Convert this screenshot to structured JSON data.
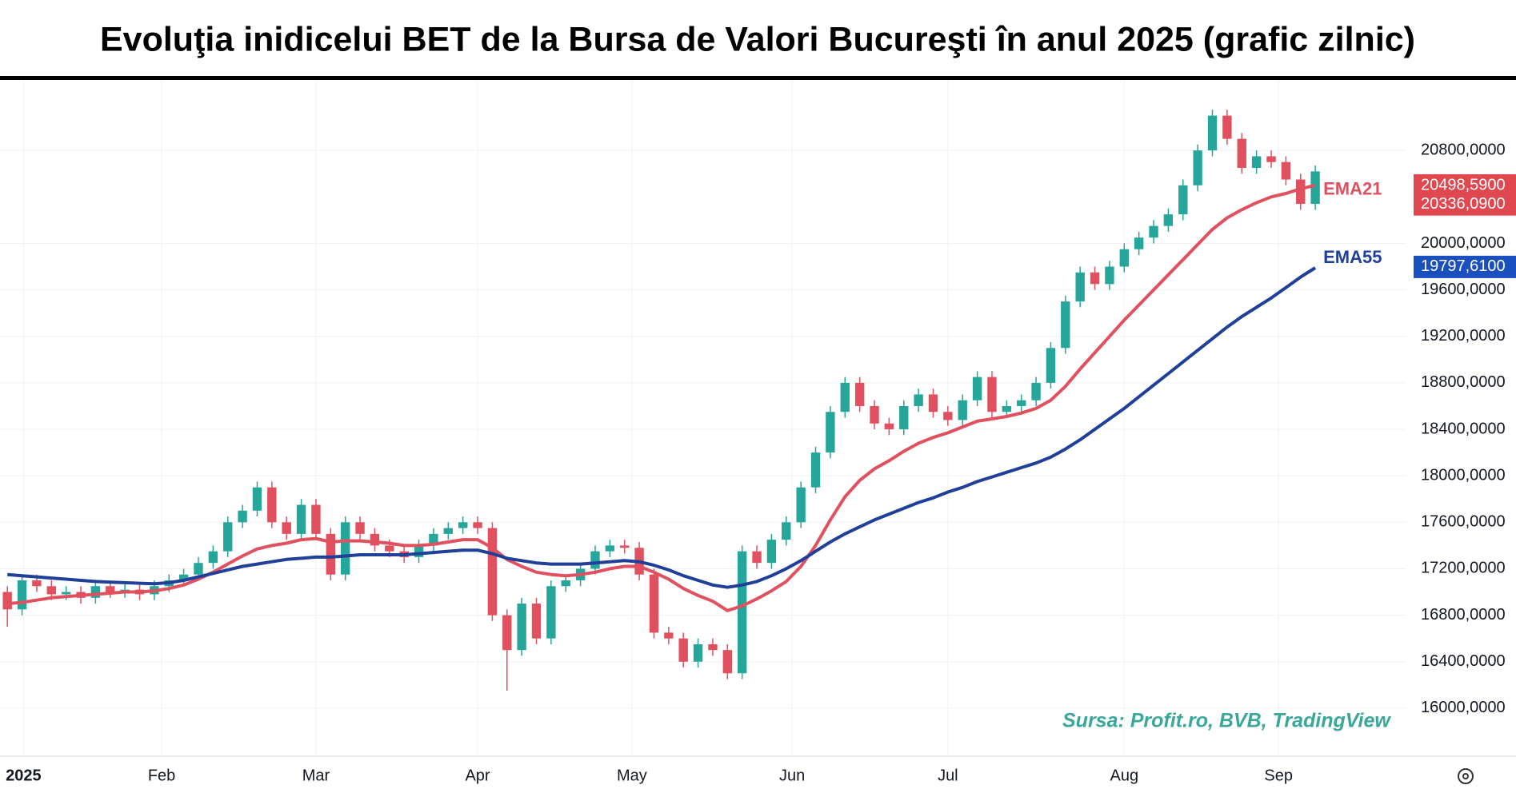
{
  "chart_data": {
    "type": "candlestick",
    "title": "Evoluţia inidicelui BET de la Bursa de Valori Bucureşti în anul 2025 (grafic zilnic)",
    "source": "Sursa: Profit.ro, BVB, TradingView",
    "up_color": "#26a69a",
    "down_color": "#e0505e",
    "grid": true,
    "xlim": [
      -0.5,
      95.2
    ],
    "ylim": [
      15600,
      21400
    ],
    "yticks": [
      {
        "value": 16000,
        "label": "16000,0000"
      },
      {
        "value": 16400,
        "label": "16400,0000"
      },
      {
        "value": 16800,
        "label": "16800,0000"
      },
      {
        "value": 17200,
        "label": "17200,0000"
      },
      {
        "value": 17600,
        "label": "17600,0000"
      },
      {
        "value": 18000,
        "label": "18000,0000"
      },
      {
        "value": 18400,
        "label": "18400,0000"
      },
      {
        "value": 18800,
        "label": "18800,0000"
      },
      {
        "value": 19200,
        "label": "19200,0000"
      },
      {
        "value": 19600,
        "label": "19600,0000"
      },
      {
        "value": 20000,
        "label": "20000,0000"
      },
      {
        "value": 20800,
        "label": "20800,0000"
      }
    ],
    "xticks": [
      {
        "value": 1.1,
        "label": "2025"
      },
      {
        "value": 10.5,
        "label": "Feb"
      },
      {
        "value": 21,
        "label": "Mar"
      },
      {
        "value": 32,
        "label": "Apr"
      },
      {
        "value": 42.5,
        "label": "May"
      },
      {
        "value": 53.4,
        "label": "Jun"
      },
      {
        "value": 64,
        "label": "Jul"
      },
      {
        "value": 76,
        "label": "Aug"
      },
      {
        "value": 86.5,
        "label": "Sep"
      }
    ],
    "open": [
      17000,
      16850,
      17100,
      17050,
      16980,
      17000,
      16950,
      17050,
      17000,
      17020,
      16980,
      17050,
      17100,
      17150,
      17250,
      17350,
      17600,
      17700,
      17900,
      17600,
      17500,
      17750,
      17500,
      17150,
      17600,
      17500,
      17400,
      17350,
      17300,
      17400,
      17500,
      17550,
      17600,
      17550,
      16800,
      16500,
      16900,
      16600,
      17050,
      17100,
      17200,
      17350,
      17400,
      17380,
      17150,
      16650,
      16600,
      16400,
      16550,
      16500,
      16300,
      17350,
      17250,
      17450,
      17600,
      17900,
      18200,
      18550,
      18800,
      18600,
      18450,
      18400,
      18600,
      18700,
      18550,
      18480,
      18650,
      18850,
      18550,
      18600,
      18650,
      18800,
      19100,
      19500,
      19750,
      19650,
      19800,
      19950,
      20050,
      20150,
      20250,
      20500,
      20800,
      21100,
      20900,
      20650,
      20750,
      20700,
      20550,
      20340
    ],
    "high": [
      17050,
      17150,
      17150,
      17100,
      17050,
      17050,
      17100,
      17100,
      17070,
      17070,
      17100,
      17150,
      17200,
      17300,
      17400,
      17650,
      17750,
      17950,
      17950,
      17650,
      17800,
      17800,
      17550,
      17650,
      17650,
      17550,
      17450,
      17400,
      17450,
      17550,
      17600,
      17650,
      17650,
      17600,
      16850,
      16950,
      16950,
      17100,
      17150,
      17250,
      17400,
      17450,
      17450,
      17430,
      17200,
      16700,
      16650,
      16600,
      16600,
      16550,
      17400,
      17400,
      17500,
      17650,
      17950,
      18250,
      18600,
      18850,
      18850,
      18650,
      18500,
      18650,
      18750,
      18750,
      18600,
      18700,
      18900,
      18900,
      18650,
      18700,
      18850,
      19150,
      19550,
      19800,
      19800,
      19850,
      20000,
      20100,
      20200,
      20300,
      20550,
      20850,
      21150,
      21150,
      20950,
      20800,
      20800,
      20750,
      20600,
      20670
    ],
    "low": [
      16700,
      16800,
      17000,
      16930,
      16930,
      16900,
      16900,
      16950,
      16950,
      16930,
      16930,
      17000,
      17050,
      17100,
      17200,
      17300,
      17550,
      17650,
      17550,
      17450,
      17450,
      17450,
      17100,
      17100,
      17450,
      17350,
      17300,
      17250,
      17250,
      17350,
      17450,
      17500,
      17500,
      16750,
      16150,
      16450,
      16550,
      16550,
      17000,
      17050,
      17150,
      17300,
      17330,
      17100,
      16600,
      16550,
      16350,
      16350,
      16450,
      16250,
      16250,
      17200,
      17200,
      17400,
      17550,
      17850,
      18150,
      18500,
      18550,
      18400,
      18350,
      18350,
      18550,
      18500,
      18430,
      18430,
      18600,
      18500,
      18500,
      18550,
      18600,
      18750,
      19050,
      19450,
      19600,
      19600,
      19750,
      19900,
      20000,
      20100,
      20200,
      20450,
      20750,
      20850,
      20600,
      20600,
      20650,
      20500,
      20290,
      20290
    ],
    "close": [
      16850,
      17100,
      17050,
      16980,
      17000,
      16950,
      17050,
      17000,
      17020,
      16980,
      17050,
      17100,
      17150,
      17250,
      17350,
      17600,
      17700,
      17900,
      17600,
      17500,
      17750,
      17500,
      17150,
      17600,
      17500,
      17400,
      17350,
      17300,
      17400,
      17500,
      17550,
      17600,
      17550,
      16800,
      16500,
      16900,
      16600,
      17050,
      17100,
      17200,
      17350,
      17400,
      17380,
      17150,
      16650,
      16600,
      16400,
      16550,
      16500,
      16300,
      17350,
      17250,
      17450,
      17600,
      17900,
      18200,
      18550,
      18800,
      18600,
      18450,
      18400,
      18600,
      18700,
      18550,
      18480,
      18650,
      18850,
      18550,
      18600,
      18650,
      18800,
      19100,
      19500,
      19750,
      19650,
      19800,
      19950,
      20050,
      20150,
      20250,
      20500,
      20800,
      21100,
      20900,
      20650,
      20750,
      20700,
      20550,
      20340,
      20620
    ],
    "series": [
      {
        "name": "EMA21",
        "color": "#e0505e",
        "values": [
          16900,
          16910,
          16930,
          16950,
          16960,
          16970,
          16980,
          16990,
          17000,
          17000,
          17010,
          17030,
          17060,
          17110,
          17170,
          17240,
          17310,
          17370,
          17400,
          17420,
          17450,
          17460,
          17430,
          17440,
          17440,
          17430,
          17420,
          17400,
          17400,
          17410,
          17430,
          17450,
          17450,
          17380,
          17280,
          17220,
          17170,
          17150,
          17140,
          17150,
          17170,
          17200,
          17220,
          17220,
          17170,
          17110,
          17030,
          16970,
          16920,
          16840,
          16880,
          16940,
          17010,
          17090,
          17220,
          17400,
          17620,
          17820,
          17960,
          18060,
          18130,
          18210,
          18280,
          18330,
          18370,
          18420,
          18470,
          18490,
          18510,
          18540,
          18580,
          18650,
          18770,
          18920,
          19060,
          19200,
          19340,
          19470,
          19600,
          19730,
          19860,
          19990,
          20120,
          20220,
          20290,
          20350,
          20400,
          20430,
          20470,
          20500
        ]
      },
      {
        "name": "EMA55",
        "color": "#1f3f99",
        "values": [
          17150,
          17140,
          17130,
          17120,
          17110,
          17100,
          17090,
          17085,
          17080,
          17075,
          17070,
          17080,
          17100,
          17130,
          17160,
          17190,
          17220,
          17240,
          17260,
          17280,
          17290,
          17300,
          17300,
          17310,
          17320,
          17320,
          17320,
          17320,
          17330,
          17340,
          17350,
          17360,
          17360,
          17330,
          17290,
          17270,
          17250,
          17240,
          17240,
          17240,
          17250,
          17260,
          17270,
          17260,
          17230,
          17190,
          17140,
          17100,
          17060,
          17040,
          17060,
          17090,
          17140,
          17200,
          17270,
          17350,
          17430,
          17500,
          17560,
          17620,
          17670,
          17720,
          17770,
          17810,
          17860,
          17900,
          17950,
          17990,
          18030,
          18070,
          18110,
          18160,
          18230,
          18310,
          18400,
          18490,
          18580,
          18680,
          18780,
          18880,
          18980,
          19080,
          19180,
          19280,
          19370,
          19450,
          19530,
          19620,
          19710,
          19790
        ]
      }
    ],
    "price_labels": [
      {
        "value": 20498.59,
        "label": "20498,5900",
        "color": "#e0474f"
      },
      {
        "value": 20336.09,
        "label": "20336,0900",
        "color": "#e0474f"
      },
      {
        "value": 19797.61,
        "label": "19797,6100",
        "color": "#1a4fbf"
      }
    ]
  }
}
